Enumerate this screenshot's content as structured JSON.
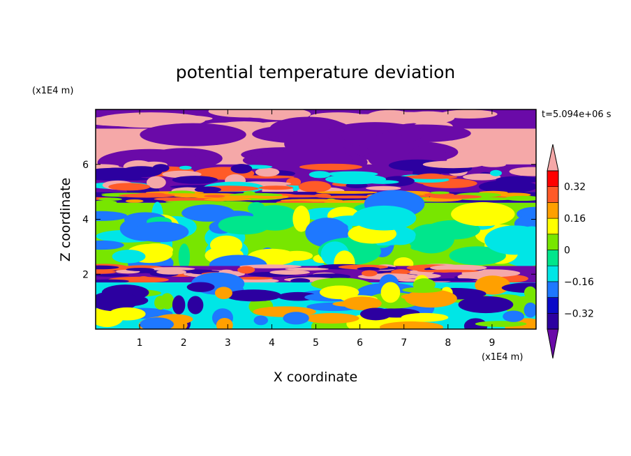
{
  "chart_data": {
    "type": "heatmap",
    "title": "potential temperature deviation",
    "xlabel": "X coordinate",
    "ylabel": "Z coordinate",
    "x_unit": "(x1E4 m)",
    "y_unit": "(x1E4 m)",
    "time_label": "t=5.094e+06 s",
    "xlim": [
      0,
      10
    ],
    "ylim": [
      0,
      8
    ],
    "x_ticks": [
      1,
      2,
      3,
      4,
      5,
      6,
      7,
      8,
      9
    ],
    "y_ticks": [
      2,
      4,
      6
    ],
    "colorbar": {
      "levels": [
        -0.4,
        -0.32,
        -0.24,
        -0.16,
        -0.08,
        0,
        0.08,
        0.16,
        0.24,
        0.32,
        0.4
      ],
      "labels": [
        "0.32",
        "0.16",
        "0",
        "−0.16",
        "−0.32"
      ],
      "label_values": [
        0.32,
        0.16,
        0,
        -0.16,
        -0.32
      ],
      "colors": [
        "#6a0aa8",
        "#2c00a0",
        "#0a0ac8",
        "#1e78ff",
        "#00e6e6",
        "#00e68c",
        "#78e600",
        "#ffff00",
        "#ffa000",
        "#ff5a28",
        "#ff0000",
        "#f5a8a8"
      ],
      "extend": "both"
    },
    "field_bands": [
      {
        "z_range": [
          7.3,
          8.0
        ],
        "pattern": "alternating",
        "colors": [
          "#6a0aa8",
          "#f5a8a8"
        ]
      },
      {
        "z_range": [
          6.0,
          7.3
        ],
        "pattern": "alternating",
        "colors": [
          "#f5a8a8",
          "#6a0aa8"
        ]
      },
      {
        "z_range": [
          5.0,
          6.0
        ],
        "pattern": "mixed",
        "colors": [
          "#6a0aa8",
          "#f5a8a8",
          "#2c00a0",
          "#ff5a28",
          "#00e6e6"
        ]
      },
      {
        "z_range": [
          4.6,
          5.0
        ],
        "pattern": "mixed",
        "colors": [
          "#2c00a0",
          "#ffa000",
          "#ff5a28",
          "#78e600"
        ]
      },
      {
        "z_range": [
          2.3,
          4.6
        ],
        "pattern": "mixed",
        "colors": [
          "#78e600",
          "#ffff00",
          "#00e68c",
          "#00e6e6",
          "#1e78ff"
        ]
      },
      {
        "z_range": [
          1.7,
          2.3
        ],
        "pattern": "mixed",
        "colors": [
          "#6a0aa8",
          "#f5a8a8",
          "#2c00a0",
          "#ff5a28"
        ]
      },
      {
        "z_range": [
          0.0,
          1.7
        ],
        "pattern": "mixed",
        "colors": [
          "#00e6e6",
          "#78e600",
          "#ffff00",
          "#ffa000",
          "#1e78ff",
          "#2c00a0"
        ]
      }
    ]
  }
}
